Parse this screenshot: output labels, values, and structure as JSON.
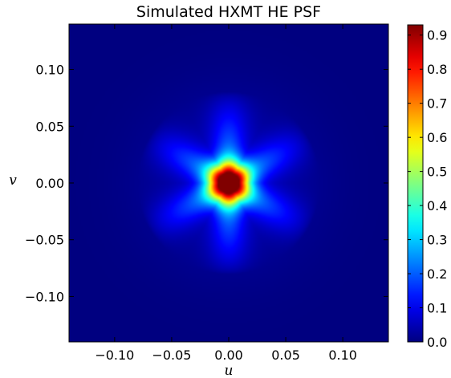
{
  "chart_data": {
    "type": "heatmap",
    "title": "Simulated HXMT HE PSF",
    "xlabel": "u",
    "ylabel": "v",
    "xlim": [
      -0.14,
      0.14
    ],
    "ylim": [
      -0.14,
      0.14
    ],
    "x_ticks": [
      -0.1,
      -0.05,
      0.0,
      0.05,
      0.1
    ],
    "x_tick_labels": [
      "−0.10",
      "−0.05",
      "0.00",
      "0.05",
      "0.10"
    ],
    "y_ticks": [
      0.1,
      0.05,
      0.0,
      -0.05,
      -0.1
    ],
    "y_tick_labels": [
      "0.10",
      "0.05",
      "0.00",
      "−0.05",
      "−0.10"
    ],
    "colorbar": {
      "colormap": "jet",
      "range": [
        0.0,
        0.93
      ],
      "ticks": [
        0.9,
        0.8,
        0.7,
        0.6,
        0.5,
        0.4,
        0.3,
        0.2,
        0.1,
        0.0
      ],
      "tick_labels": [
        "0.9",
        "0.8",
        "0.7",
        "0.6",
        "0.5",
        "0.4",
        "0.3",
        "0.2",
        "0.1",
        "0.0"
      ]
    },
    "psf_model": {
      "peak_value": 0.93,
      "peak_position": [
        0.0,
        0.0
      ],
      "symmetry": "six-pointed star",
      "arm_angles_deg": [
        90,
        30,
        -30,
        -90,
        -150,
        150
      ],
      "arm_length": 0.08,
      "arm_peak_value": 0.22,
      "core_radius": 0.012,
      "halo_radius": 0.085,
      "halo_value": 0.06
    },
    "grid": false,
    "legend": "none"
  }
}
